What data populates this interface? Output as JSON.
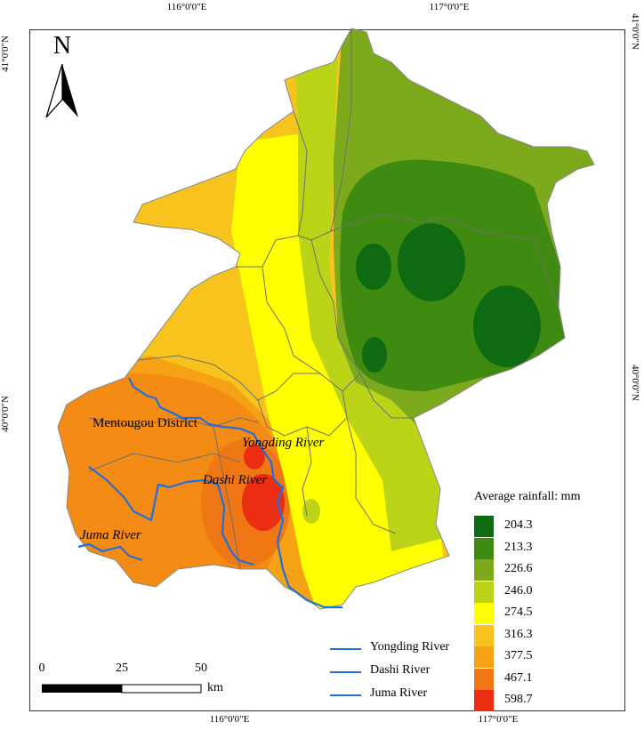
{
  "graticule": {
    "top_lon": [
      "116°0'0\"E",
      "117°0'0\"E"
    ],
    "bottom_lon": [
      "116°0'0\"E",
      "117°0'0\"E"
    ],
    "left_lat": [
      "41°0'0\"N",
      "40°0'0\"N"
    ],
    "right_lat": [
      "41°0'0\"N",
      "40°0'0\"N"
    ]
  },
  "north_arrow": {
    "label": "N"
  },
  "labels": {
    "district": "Mentougou District",
    "yongding": "Yongding River",
    "dashi": "Dashi River",
    "juma": "Juma River"
  },
  "legend": {
    "title": "Average rainfall: mm",
    "classes": [
      {
        "value": "204.3",
        "color": "#0f6b12"
      },
      {
        "value": "213.3",
        "color": "#3f8a10"
      },
      {
        "value": "226.6",
        "color": "#7caa1c"
      },
      {
        "value": "246.0",
        "color": "#bcd418"
      },
      {
        "value": "274.5",
        "color": "#ffff00"
      },
      {
        "value": "316.3",
        "color": "#f8c31c"
      },
      {
        "value": "377.5",
        "color": "#f5a214"
      },
      {
        "value": "467.1",
        "color": "#f07814"
      },
      {
        "value": "598.7",
        "color": "#eb2d12"
      }
    ]
  },
  "river_legend": [
    {
      "label": "Yongding River",
      "color": "#1f6fe0"
    },
    {
      "label": "Dashi River",
      "color": "#1f6fe0"
    },
    {
      "label": "Juma River",
      "color": "#1f6fe0"
    }
  ],
  "scale_bar": {
    "ticks": [
      "0",
      "25",
      "50"
    ],
    "unit": "km"
  }
}
